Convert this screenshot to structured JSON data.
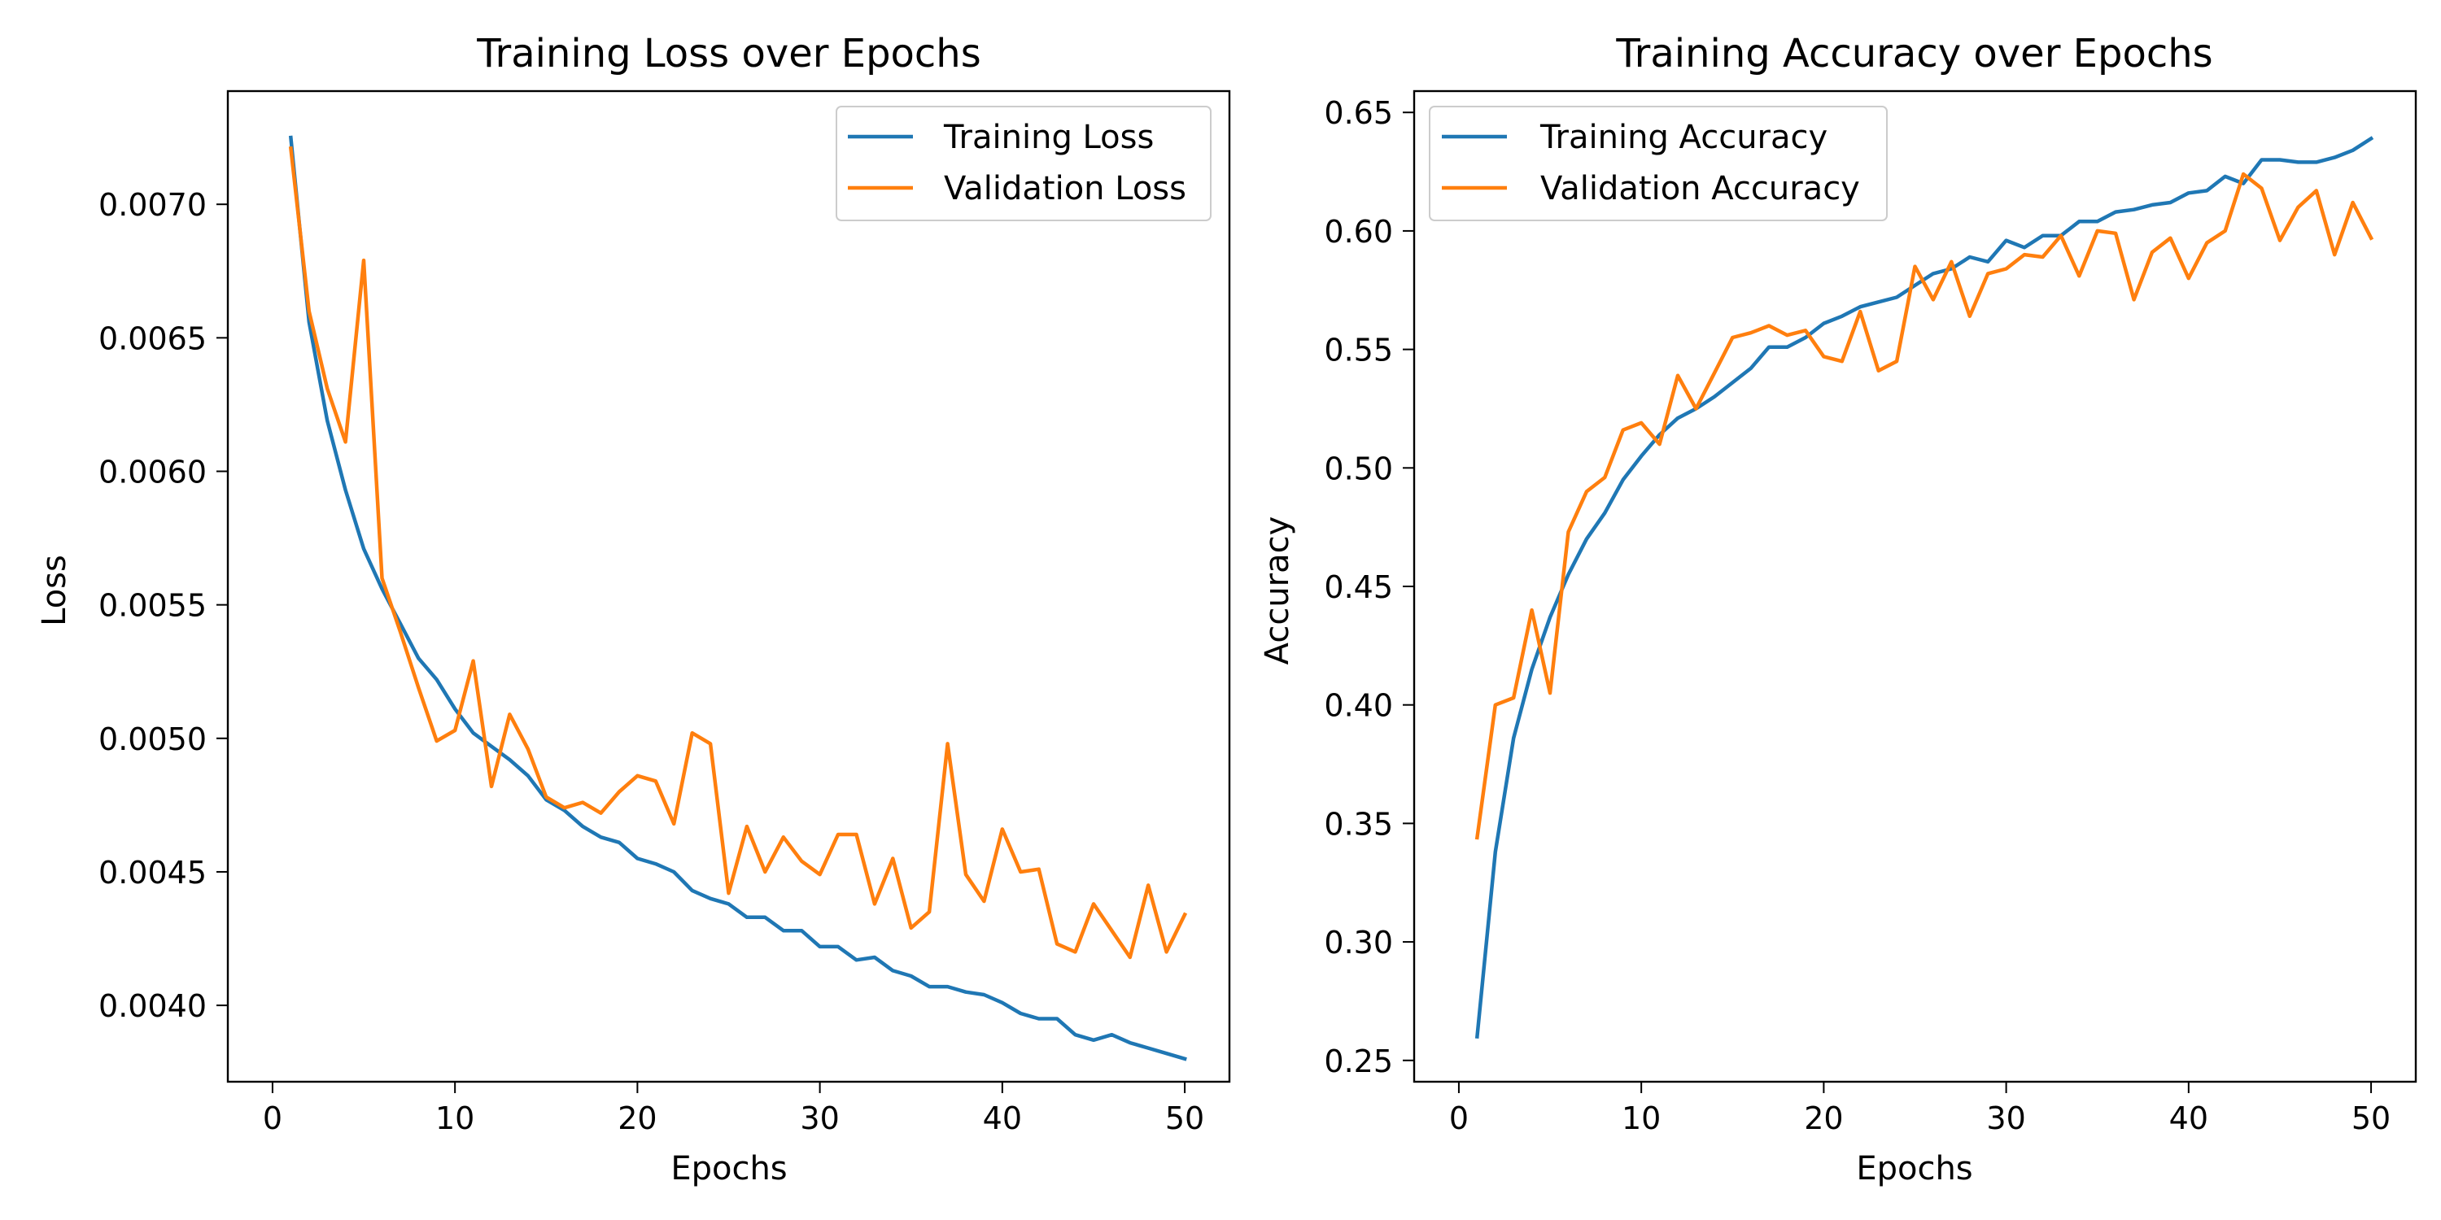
{
  "chart_data": [
    {
      "type": "line",
      "title": "Training Loss over Epochs",
      "xlabel": "Epochs",
      "ylabel": "Loss",
      "xlim": [
        -2.45,
        52.45
      ],
      "ylim": [
        0.003714,
        0.007424
      ],
      "xticks": [
        0,
        10,
        20,
        30,
        40,
        50
      ],
      "yticks": [
        0.004,
        0.0045,
        0.005,
        0.0055,
        0.006,
        0.0065,
        0.007
      ],
      "ytick_labels": [
        "0.0040",
        "0.0045",
        "0.0050",
        "0.0055",
        "0.0060",
        "0.0065",
        "0.0070"
      ],
      "grid": false,
      "legend_position": "upper right",
      "x": [
        1,
        2,
        3,
        4,
        5,
        6,
        7,
        8,
        9,
        10,
        11,
        12,
        13,
        14,
        15,
        16,
        17,
        18,
        19,
        20,
        21,
        22,
        23,
        24,
        25,
        26,
        27,
        28,
        29,
        30,
        31,
        32,
        33,
        34,
        35,
        36,
        37,
        38,
        39,
        40,
        41,
        42,
        43,
        44,
        45,
        46,
        47,
        48,
        49,
        50
      ],
      "series": [
        {
          "name": "Training Loss",
          "color": "#1f77b4",
          "values": [
            0.00725,
            0.00656,
            0.00619,
            0.00593,
            0.00571,
            0.00556,
            0.00543,
            0.0053,
            0.00522,
            0.00511,
            0.00502,
            0.00497,
            0.00492,
            0.00486,
            0.00477,
            0.00473,
            0.00467,
            0.00463,
            0.00461,
            0.00455,
            0.00453,
            0.0045,
            0.00443,
            0.0044,
            0.00438,
            0.00433,
            0.00433,
            0.00428,
            0.00428,
            0.00422,
            0.00422,
            0.00417,
            0.00418,
            0.00413,
            0.00411,
            0.00407,
            0.00407,
            0.00405,
            0.00404,
            0.00401,
            0.00397,
            0.00395,
            0.00395,
            0.00389,
            0.00387,
            0.00389,
            0.00386,
            0.00384,
            0.00382,
            0.0038
          ]
        },
        {
          "name": "Validation Loss",
          "color": "#ff7f0e",
          "values": [
            0.00721,
            0.0066,
            0.00631,
            0.00611,
            0.00679,
            0.0056,
            0.0054,
            0.00519,
            0.00499,
            0.00503,
            0.00529,
            0.00482,
            0.00509,
            0.00496,
            0.00478,
            0.00474,
            0.00476,
            0.00472,
            0.0048,
            0.00486,
            0.00484,
            0.00468,
            0.00502,
            0.00498,
            0.00442,
            0.00467,
            0.0045,
            0.00463,
            0.00454,
            0.00449,
            0.00464,
            0.00464,
            0.00438,
            0.00455,
            0.00429,
            0.00435,
            0.00498,
            0.00449,
            0.00439,
            0.00466,
            0.0045,
            0.00451,
            0.00423,
            0.0042,
            0.00438,
            0.00428,
            0.00418,
            0.00445,
            0.0042,
            0.00434
          ]
        }
      ]
    },
    {
      "type": "line",
      "title": "Training Accuracy over Epochs",
      "xlabel": "Epochs",
      "ylabel": "Accuracy",
      "xlim": [
        -2.45,
        52.45
      ],
      "ylim": [
        0.241,
        0.659
      ],
      "xticks": [
        0,
        10,
        20,
        30,
        40,
        50
      ],
      "yticks": [
        0.25,
        0.3,
        0.35,
        0.4,
        0.45,
        0.5,
        0.55,
        0.6,
        0.65
      ],
      "ytick_labels": [
        "0.25",
        "0.30",
        "0.35",
        "0.40",
        "0.45",
        "0.50",
        "0.55",
        "0.60",
        "0.65"
      ],
      "grid": false,
      "legend_position": "upper left",
      "x": [
        1,
        2,
        3,
        4,
        5,
        6,
        7,
        8,
        9,
        10,
        11,
        12,
        13,
        14,
        15,
        16,
        17,
        18,
        19,
        20,
        21,
        22,
        23,
        24,
        25,
        26,
        27,
        28,
        29,
        30,
        31,
        32,
        33,
        34,
        35,
        36,
        37,
        38,
        39,
        40,
        41,
        42,
        43,
        44,
        45,
        46,
        47,
        48,
        49,
        50
      ],
      "series": [
        {
          "name": "Training Accuracy",
          "color": "#1f77b4",
          "values": [
            0.26,
            0.338,
            0.386,
            0.415,
            0.437,
            0.455,
            0.47,
            0.481,
            0.495,
            0.505,
            0.514,
            0.521,
            0.525,
            0.53,
            0.536,
            0.542,
            0.551,
            0.551,
            0.555,
            0.561,
            0.564,
            0.568,
            0.57,
            0.572,
            0.577,
            0.582,
            0.584,
            0.589,
            0.587,
            0.596,
            0.593,
            0.598,
            0.598,
            0.604,
            0.604,
            0.608,
            0.609,
            0.611,
            0.612,
            0.616,
            0.617,
            0.623,
            0.62,
            0.63,
            0.63,
            0.629,
            0.629,
            0.631,
            0.634,
            0.639
          ]
        },
        {
          "name": "Validation Accuracy",
          "color": "#ff7f0e",
          "values": [
            0.344,
            0.4,
            0.403,
            0.44,
            0.405,
            0.473,
            0.49,
            0.496,
            0.516,
            0.519,
            0.51,
            0.539,
            0.525,
            0.54,
            0.555,
            0.557,
            0.56,
            0.556,
            0.558,
            0.547,
            0.545,
            0.566,
            0.541,
            0.545,
            0.585,
            0.571,
            0.587,
            0.564,
            0.582,
            0.584,
            0.59,
            0.589,
            0.598,
            0.581,
            0.6,
            0.599,
            0.571,
            0.591,
            0.597,
            0.58,
            0.595,
            0.6,
            0.624,
            0.618,
            0.596,
            0.61,
            0.617,
            0.59,
            0.612,
            0.597
          ]
        }
      ]
    }
  ]
}
